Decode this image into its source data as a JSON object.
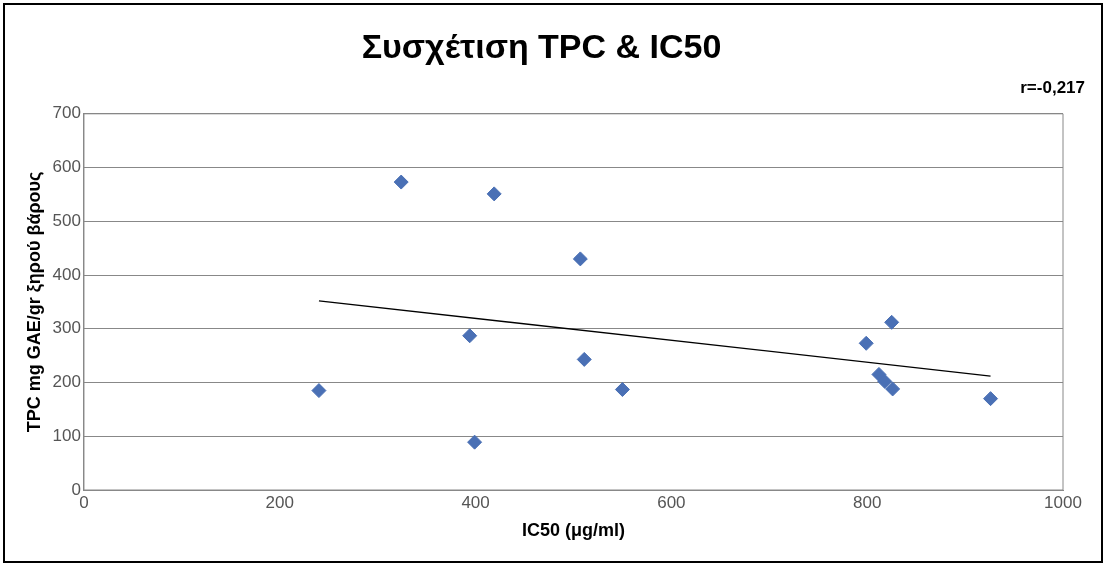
{
  "chart_data": {
    "type": "scatter",
    "title": "Συσχέτιση TPC & IC50",
    "xlabel": "IC50 (μg/ml)",
    "ylabel": "TPC mg GAE/gr ξηρού βάρους",
    "annotations": [
      "r=-0,217"
    ],
    "xlim": [
      0,
      1000
    ],
    "xticks": [
      0,
      200,
      400,
      600,
      800,
      1000
    ],
    "ylim": [
      0,
      700
    ],
    "yticks": [
      0,
      100,
      200,
      300,
      400,
      500,
      600,
      700
    ],
    "grid": "y",
    "legend": false,
    "series": [
      {
        "marker": "diamond",
        "color": "#4a70b5",
        "x": [
          240,
          324,
          419,
          507,
          394,
          511,
          399,
          550,
          799,
          825,
          812,
          818,
          826,
          926
        ],
        "values": [
          185,
          573,
          551,
          430,
          287,
          243,
          89,
          187,
          273,
          312,
          215,
          202,
          188,
          170
        ]
      },
      {
        "type": "line",
        "color": "#000000",
        "line_style": "solid",
        "x": [
          240,
          926
        ],
        "values": [
          352,
          212
        ]
      }
    ]
  }
}
